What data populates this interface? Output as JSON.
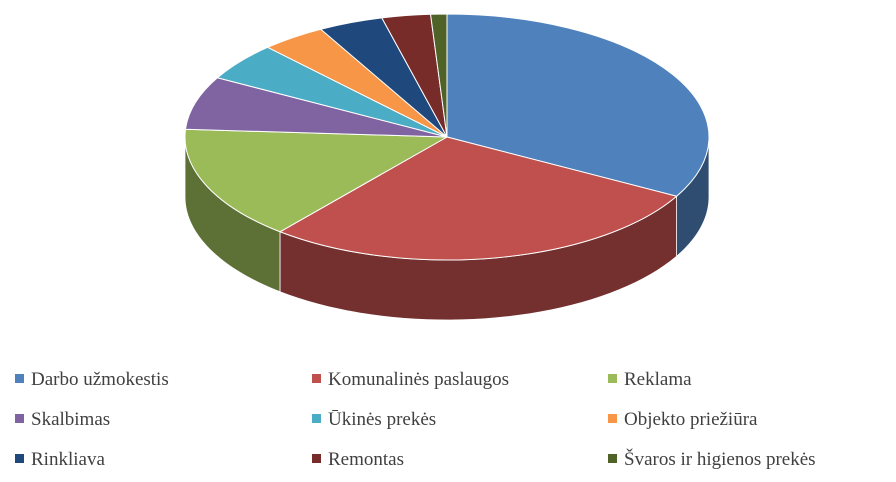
{
  "chart_data": {
    "type": "pie3d",
    "categories": [
      "Darbo užmokestis",
      "Komunalinės paslaugos",
      "Reklama",
      "Skalbimas",
      "Ūkinės prekės",
      "Objekto priežiūra",
      "Rinkliava",
      "Remontas",
      "Švaros ir higienos prekės"
    ],
    "values": [
      33,
      28,
      15,
      7,
      5,
      4,
      4,
      3,
      1
    ],
    "colors": [
      "#4f81bd",
      "#c0504d",
      "#9bbb59",
      "#8064a2",
      "#4bacc6",
      "#f79646",
      "#1f497d",
      "#772c2a",
      "#4f6228"
    ],
    "legend": "bottom"
  }
}
